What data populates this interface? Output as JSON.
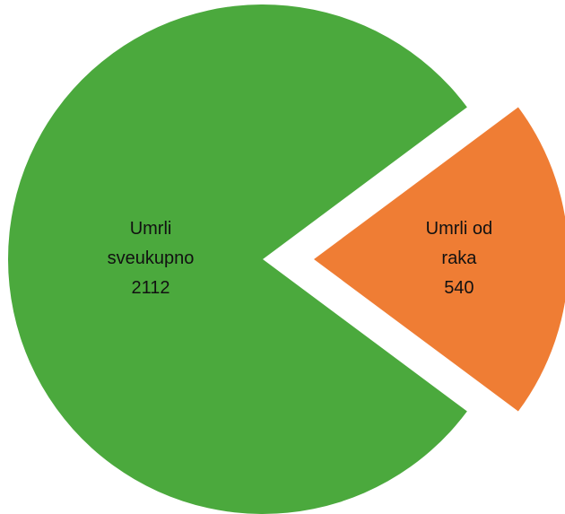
{
  "chart_data": {
    "type": "pie",
    "categories": [
      "Umrli sveukupno",
      "Umrli od raka"
    ],
    "values": [
      2112,
      540
    ],
    "colors": [
      "#4ba93d",
      "#ef7d34"
    ],
    "explode": [
      false,
      true
    ]
  }
}
